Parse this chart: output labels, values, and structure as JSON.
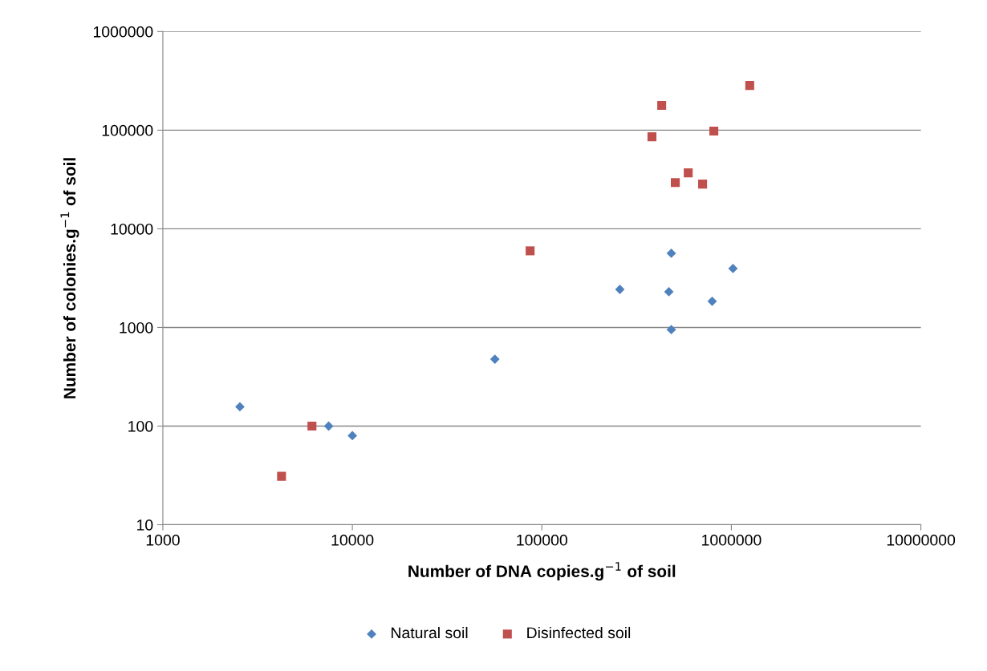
{
  "chart_data": {
    "type": "scatter",
    "xlabel": "Number of DNA copies.g$^{−1}$ of soil",
    "ylabel": "Number of colonies.g$^{−1}$ of soil",
    "log": "xy",
    "xlim": [
      1000,
      10000000
    ],
    "xticks": [
      1000,
      10000,
      100000,
      1000000,
      10000000
    ],
    "ylim": [
      10,
      1000000
    ],
    "yticks": [
      10,
      100,
      1000,
      10000,
      100000,
      1000000
    ],
    "grid": "y",
    "legend": "bottom",
    "series": [
      {
        "name": "Natural soil",
        "color": "#4f81bd",
        "marker": "diamond",
        "x": [
          2550,
          7500,
          10000,
          56500,
          258000,
          482000,
          468000,
          482000,
          792000,
          1020000
        ],
        "values": [
          157,
          100,
          80,
          476,
          2430,
          5650,
          2300,
          950,
          1840,
          3960
        ]
      },
      {
        "name": "Disinfected soil",
        "color": "#c0504d",
        "marker": "square",
        "x": [
          4230,
          6120,
          86700,
          381000,
          429000,
          506000,
          592000,
          705000,
          808000,
          1250000
        ],
        "values": [
          31,
          100,
          5980,
          85700,
          178000,
          29400,
          36900,
          28400,
          97800,
          284000
        ]
      }
    ]
  }
}
